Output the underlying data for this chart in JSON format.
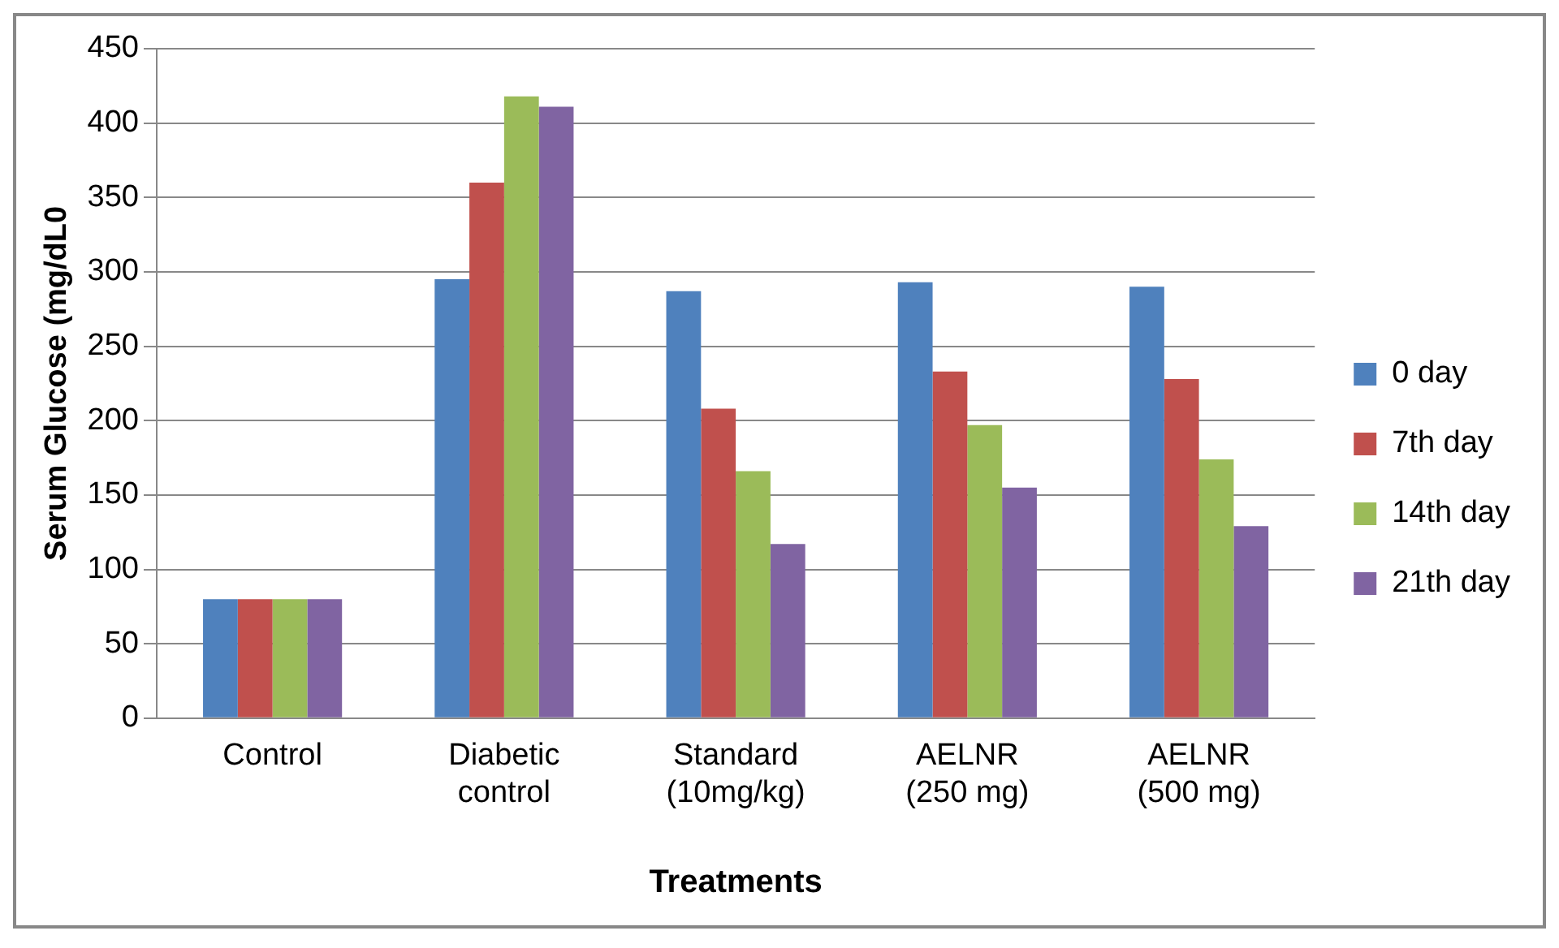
{
  "chart_data": {
    "type": "bar",
    "xlabel": "Treatments",
    "ylabel": "Serum Glucose (mg/dL0",
    "categories": [
      "Control",
      "Diabetic control",
      "Standard (10mg/kg)",
      "AELNR (250 mg)",
      "AELNR (500 mg)"
    ],
    "series": [
      {
        "name": "0 day",
        "color": "#4f81bd",
        "values": [
          80,
          295,
          287,
          293,
          290
        ]
      },
      {
        "name": "7th day",
        "color": "#c0504d",
        "values": [
          80,
          360,
          208,
          233,
          228
        ]
      },
      {
        "name": "14th day",
        "color": "#9bbb59",
        "values": [
          80,
          418,
          166,
          197,
          174
        ]
      },
      {
        "name": "21th day",
        "color": "#8064a2",
        "values": [
          80,
          411,
          117,
          155,
          129
        ]
      }
    ],
    "ylim": [
      0,
      450
    ],
    "yticks": [
      0,
      50,
      100,
      150,
      200,
      250,
      300,
      350,
      400,
      450
    ],
    "grid": "y",
    "legend": "right"
  }
}
